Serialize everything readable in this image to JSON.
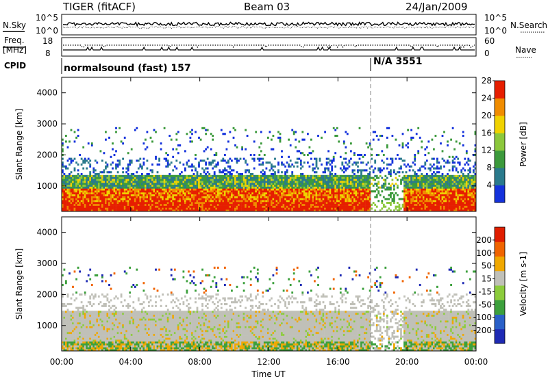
{
  "header": {
    "title": "TIGER (fitACF)",
    "beam": "Beam 03",
    "date": "24/Jan/2009"
  },
  "strip_nsky": {
    "left_label": "N.Sky",
    "right_label": "N.Search",
    "left_ticks": [
      "10^5",
      "10^0"
    ],
    "right_ticks": [
      "10^5",
      "10^0"
    ]
  },
  "strip_freq": {
    "left_label_line1": "Freq.",
    "left_label_line2": "[MHz]",
    "left_ticks": [
      "18",
      "8"
    ],
    "right_label": "Nave",
    "right_ticks": [
      "60",
      "0"
    ]
  },
  "cpid": {
    "label": "CPID",
    "segments": [
      {
        "text": "normalsound (fast) 157"
      },
      {
        "text": "N/A 3551"
      }
    ]
  },
  "chart_data": [
    {
      "type": "heatmap",
      "name": "power",
      "ylabel": "Slant Range [km]",
      "ylim": [
        180,
        4500
      ],
      "yticks": [
        1000,
        2000,
        3000,
        4000
      ],
      "xlabel": "",
      "x_ticks": [
        "00:00",
        "04:00",
        "08:00",
        "12:00",
        "16:00",
        "20:00",
        "00:00"
      ],
      "colorbar": {
        "label": "Power [dB]",
        "ticks": [
          "4",
          "8",
          "12",
          "16",
          "20",
          "24",
          "28"
        ],
        "colors": [
          "#1432dc",
          "#2a7a8c",
          "#3c9a3c",
          "#8cc83c",
          "#f0d200",
          "#f08c00",
          "#e61e00"
        ]
      }
    },
    {
      "type": "heatmap",
      "name": "velocity",
      "ylabel": "Slant Range [km]",
      "ylim": [
        180,
        4500
      ],
      "yticks": [
        1000,
        2000,
        3000,
        4000
      ],
      "xlabel": "Time UT",
      "x_ticks": [
        "00:00",
        "04:00",
        "08:00",
        "12:00",
        "16:00",
        "20:00",
        "00:00"
      ],
      "colorbar": {
        "label": "Velocity [m s-1]",
        "ticks": [
          "200",
          "100",
          "50",
          "15",
          "-15",
          "-50",
          "-100",
          "-200"
        ],
        "colors": [
          "#1e2ab4",
          "#2a60c8",
          "#3ca03c",
          "#8ccc3c",
          "#c0c0b8",
          "#f0a800",
          "#f06400",
          "#e01e00"
        ]
      }
    }
  ]
}
